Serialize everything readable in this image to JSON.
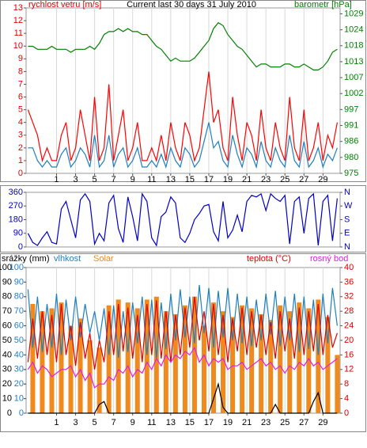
{
  "chart_data": [
    {
      "type": "line",
      "title": "Current last 30 days 31 July 2010",
      "ylabel": "rychlost vetru [m/s]",
      "y2label": "barometr [hPa]",
      "ylabel_color": "#e00000",
      "y2label_color": "#008000",
      "x": [
        -2,
        -1.5,
        -1,
        -0.5,
        0,
        0.5,
        1,
        1.5,
        2,
        2.5,
        3,
        3.5,
        4,
        4.5,
        5,
        5.5,
        6,
        6.5,
        7,
        7.5,
        8,
        8.5,
        9,
        9.5,
        10,
        10.5,
        11,
        11.5,
        12,
        12.5,
        13,
        13.5,
        14,
        14.5,
        15,
        15.5,
        16,
        16.5,
        17,
        17.5,
        18,
        18.5,
        19,
        19.5,
        20,
        20.5,
        21,
        21.5,
        22,
        22.5,
        23,
        23.5,
        24,
        24.5,
        25,
        25.5,
        26,
        26.5,
        27,
        27.5,
        28,
        28.5,
        29,
        29.5,
        30,
        30.5
      ],
      "xlim": [
        -2.2,
        30.8
      ],
      "xticks": [
        1,
        3,
        5,
        7,
        9,
        11,
        13,
        15,
        17,
        19,
        21,
        23,
        25,
        27,
        29
      ],
      "grid": "x",
      "ylim": [
        0,
        13
      ],
      "yticks": [
        0,
        1,
        2,
        3,
        4,
        5,
        6,
        7,
        8,
        9,
        10,
        11,
        12,
        13
      ],
      "ytick_color": "#e00000",
      "y2lim": [
        975,
        1031
      ],
      "y2tick_color": "#008000",
      "y2ticks": [
        {
          "value": 975,
          "label": "975"
        },
        {
          "value": 980.4,
          "label": "980"
        },
        {
          "value": 985.8,
          "label": "986"
        },
        {
          "value": 991.2,
          "label": "991"
        },
        {
          "value": 996.6,
          "label": "997"
        },
        {
          "value": 1002,
          "label": "1002"
        },
        {
          "value": 1007.4,
          "label": "1007"
        },
        {
          "value": 1012.8,
          "label": "1013"
        },
        {
          "value": 1018.2,
          "label": "1018"
        },
        {
          "value": 1023.6,
          "label": "1024"
        },
        {
          "value": 1029,
          "label": "1029"
        }
      ],
      "series": [
        {
          "color": "#ff0000",
          "axis": "y",
          "style": "line",
          "values": [
            5,
            4,
            3,
            1,
            2,
            1,
            1,
            3,
            4,
            1,
            2,
            5,
            3,
            1,
            6,
            1,
            2,
            7,
            1,
            3,
            5,
            1,
            2,
            4,
            1,
            1,
            2,
            1,
            3,
            1,
            4,
            2,
            1,
            4,
            3,
            1,
            2,
            5,
            8,
            4,
            5,
            2,
            1,
            6,
            3,
            1,
            4,
            3,
            1,
            5,
            2,
            1,
            4,
            2,
            1,
            6,
            2,
            1,
            5,
            1,
            2,
            4,
            1,
            3,
            2,
            4
          ]
        },
        {
          "color": "#1e7fc0",
          "axis": "y",
          "style": "line",
          "values": [
            2,
            2,
            1,
            0.5,
            1,
            0.5,
            0.5,
            1.5,
            2,
            0.5,
            1,
            2,
            1.5,
            0.5,
            3,
            0.5,
            1,
            3,
            0.5,
            1.5,
            2,
            0.5,
            1,
            2,
            0.5,
            0.5,
            1,
            0.5,
            1.5,
            0.5,
            2,
            1,
            0.5,
            2,
            1.5,
            0.5,
            1,
            2.5,
            4,
            2,
            2.5,
            1,
            0.5,
            3,
            1.5,
            0.5,
            2,
            1.5,
            0.5,
            2.5,
            1,
            0.5,
            2,
            1,
            0.5,
            3,
            1,
            0.5,
            2.5,
            0.5,
            1,
            2,
            0.5,
            1.5,
            1,
            2
          ]
        },
        {
          "color": "#008000",
          "axis": "y2",
          "style": "line",
          "values": [
            1018,
            1018,
            1017,
            1017,
            1017,
            1018,
            1017,
            1017,
            1017,
            1016,
            1017,
            1017,
            1017,
            1018,
            1017,
            1019,
            1022,
            1023,
            1023,
            1024,
            1023,
            1024,
            1023,
            1023,
            1022,
            1022,
            1020,
            1018,
            1017,
            1015,
            1013,
            1014,
            1013,
            1013,
            1013,
            1014,
            1016,
            1018,
            1020,
            1024,
            1026,
            1025,
            1022,
            1020,
            1018,
            1017,
            1015,
            1013,
            1011,
            1012,
            1012,
            1011,
            1011,
            1011,
            1012,
            1012,
            1011,
            1011,
            1012,
            1011,
            1010,
            1010,
            1011,
            1013,
            1016,
            1017
          ]
        }
      ]
    },
    {
      "type": "line",
      "x": [
        -2,
        -1.5,
        -1,
        -0.5,
        0,
        0.5,
        1,
        1.5,
        2,
        2.5,
        3,
        3.5,
        4,
        4.5,
        5,
        5.5,
        6,
        6.5,
        7,
        7.5,
        8,
        8.5,
        9,
        9.5,
        10,
        10.5,
        11,
        11.5,
        12,
        12.5,
        13,
        13.5,
        14,
        14.5,
        15,
        15.5,
        16,
        16.5,
        17,
        17.5,
        18,
        18.5,
        19,
        19.5,
        20,
        20.5,
        21,
        21.5,
        22,
        22.5,
        23,
        23.5,
        24,
        24.5,
        25,
        25.5,
        26,
        26.5,
        27,
        27.5,
        28,
        28.5,
        29,
        29.5,
        30,
        30.5
      ],
      "xlim": [
        -2.2,
        30.8
      ],
      "grid": "none",
      "ylim": [
        0,
        360
      ],
      "yticks": [
        0,
        90,
        180,
        270,
        360
      ],
      "ytick_color": "#0000cc",
      "y2lim": [
        0,
        360
      ],
      "y2tick_color": "#0000cc",
      "y2ticks": [
        {
          "value": 0,
          "label": "N"
        },
        {
          "value": 90,
          "label": "E"
        },
        {
          "value": 180,
          "label": "S"
        },
        {
          "value": 270,
          "label": "W"
        },
        {
          "value": 360,
          "label": "N"
        }
      ],
      "series": [
        {
          "color": "#0000cc",
          "axis": "y",
          "style": "line",
          "values": [
            90,
            30,
            10,
            60,
            100,
            30,
            20,
            250,
            300,
            180,
            60,
            310,
            350,
            300,
            20,
            90,
            40,
            290,
            340,
            120,
            30,
            330,
            200,
            40,
            350,
            300,
            60,
            10,
            200,
            230,
            330,
            290,
            60,
            30,
            90,
            180,
            220,
            270,
            280,
            100,
            40,
            300,
            60,
            110,
            210,
            100,
            300,
            340,
            330,
            350,
            240,
            350,
            320,
            300,
            340,
            20,
            300,
            330,
            90,
            320,
            350,
            10,
            300,
            340,
            40,
            320
          ]
        }
      ]
    },
    {
      "type": "line",
      "x": [
        -2,
        -1.5,
        -1,
        -0.5,
        0,
        0.5,
        1,
        1.5,
        2,
        2.5,
        3,
        3.5,
        4,
        4.5,
        5,
        5.5,
        6,
        6.5,
        7,
        7.5,
        8,
        8.5,
        9,
        9.5,
        10,
        10.5,
        11,
        11.5,
        12,
        12.5,
        13,
        13.5,
        14,
        14.5,
        15,
        15.5,
        16,
        16.5,
        17,
        17.5,
        18,
        18.5,
        19,
        19.5,
        20,
        20.5,
        21,
        21.5,
        22,
        22.5,
        23,
        23.5,
        24,
        24.5,
        25,
        25.5,
        26,
        26.5,
        27,
        27.5,
        28,
        28.5,
        29,
        29.5,
        30,
        30.5
      ],
      "xlim": [
        -2.2,
        30.8
      ],
      "xticks": [
        1,
        3,
        5,
        7,
        9,
        11,
        13,
        15,
        17,
        19,
        21,
        23,
        25,
        27,
        29
      ],
      "grid": "x",
      "ylim": [
        0,
        100
      ],
      "yticks": [
        0,
        10,
        20,
        30,
        40,
        50,
        60,
        70,
        80,
        90,
        100
      ],
      "ytick_color": "#000000",
      "y3lim": [
        0,
        100
      ],
      "y3ticks": [
        0,
        10,
        20,
        30,
        40,
        50,
        60,
        70,
        80,
        90,
        100
      ],
      "y3tick_color": "#1e7fc0",
      "y2lim": [
        0,
        40
      ],
      "y2ticks": [
        0,
        4,
        8,
        12,
        16,
        20,
        24,
        28,
        32,
        36,
        40
      ],
      "y2tick_color": "#e00000",
      "series": [
        {
          "name": "Solar",
          "color": "#f08a1c",
          "axis": "y3",
          "style": "bars",
          "values": [
            0,
            75,
            0,
            70,
            0,
            72,
            0,
            76,
            0,
            60,
            0,
            65,
            0,
            50,
            0,
            45,
            0,
            74,
            0,
            78,
            0,
            76,
            0,
            72,
            0,
            78,
            0,
            80,
            0,
            70,
            0,
            68,
            0,
            74,
            0,
            80,
            0,
            60,
            0,
            76,
            0,
            70,
            0,
            66,
            0,
            74,
            0,
            72,
            0,
            68,
            0,
            64,
            0,
            74,
            0,
            70,
            0,
            76,
            0,
            72,
            0,
            78,
            0,
            66,
            0,
            40
          ]
        },
        {
          "name": "vlhkost",
          "color": "#1e7fc0",
          "axis": "y3",
          "style": "line",
          "values": [
            85,
            45,
            80,
            42,
            75,
            45,
            82,
            40,
            78,
            50,
            80,
            52,
            75,
            55,
            70,
            50,
            72,
            40,
            74,
            38,
            70,
            42,
            76,
            48,
            80,
            40,
            78,
            38,
            76,
            44,
            82,
            50,
            85,
            52,
            80,
            48,
            88,
            55,
            86,
            45,
            84,
            52,
            86,
            50,
            82,
            48,
            80,
            46,
            78,
            50,
            82,
            54,
            84,
            46,
            80,
            50,
            82,
            42,
            80,
            44,
            78,
            40,
            82,
            48,
            86,
            60
          ]
        },
        {
          "name": "teplota (°C)",
          "color": "#e00000",
          "axis": "y2",
          "style": "line",
          "values": [
            14,
            26,
            15,
            28,
            16,
            27,
            14,
            30,
            16,
            24,
            13,
            25,
            15,
            22,
            12,
            20,
            14,
            28,
            16,
            30,
            17,
            29,
            15,
            27,
            14,
            30,
            16,
            31,
            15,
            28,
            14,
            27,
            16,
            29,
            18,
            32,
            20,
            28,
            17,
            30,
            16,
            27,
            14,
            26,
            17,
            29,
            16,
            28,
            18,
            27,
            16,
            25,
            15,
            28,
            17,
            26,
            15,
            29,
            16,
            28,
            17,
            30,
            16,
            27,
            18,
            22
          ]
        },
        {
          "name": "rosný bod",
          "color": "#e020e0",
          "axis": "y2",
          "style": "line",
          "values": [
            12,
            14,
            11,
            13,
            12,
            10,
            11,
            12,
            12,
            13,
            10,
            12,
            9,
            11,
            7,
            8,
            8,
            10,
            9,
            12,
            11,
            13,
            10,
            12,
            11,
            14,
            12,
            15,
            13,
            16,
            14,
            16,
            15,
            17,
            16,
            18,
            14,
            16,
            13,
            15,
            14,
            15,
            12,
            13,
            13,
            14,
            12,
            13,
            14,
            15,
            13,
            14,
            12,
            13,
            11,
            13,
            12,
            14,
            13,
            15,
            13,
            14,
            12,
            13,
            14,
            15
          ]
        },
        {
          "name": "srážky (mm)",
          "color": "#000000",
          "axis": "y",
          "style": "line",
          "values": [
            0,
            0,
            0,
            0,
            0,
            0,
            0,
            0,
            0,
            0,
            0,
            0,
            0,
            0,
            0,
            6,
            8,
            0,
            0,
            0,
            0,
            0,
            0,
            0,
            0,
            0,
            0,
            0,
            0,
            0,
            0,
            0,
            0,
            0,
            0,
            0,
            0,
            0,
            0,
            10,
            20,
            4,
            0,
            0,
            0,
            0,
            0,
            0,
            0,
            0,
            0,
            0,
            6,
            0,
            0,
            0,
            0,
            0,
            0,
            0,
            8,
            14,
            0,
            0,
            0,
            0
          ]
        }
      ]
    }
  ]
}
